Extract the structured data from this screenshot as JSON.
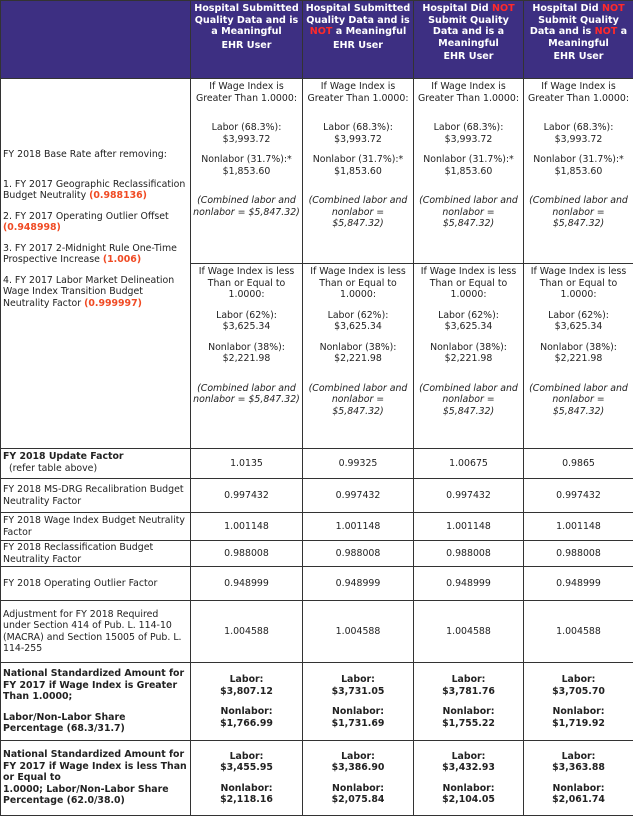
{
  "header": {
    "columns": [
      {
        "line1": "Hospital Submitted Quality Data and is a Meaningful",
        "not1": "",
        "line2": "",
        "not2": "",
        "line3": "",
        "ehr": "EHR User"
      },
      {
        "line1": "Hospital Submitted Quality Data and is ",
        "not1": "NOT",
        "line2": " a Meaningful",
        "not2": "",
        "line3": "",
        "ehr": "EHR User"
      },
      {
        "line1": "Hospital Did ",
        "not1": "NOT",
        "line2": " Submit Quality Data and is a Meaningful",
        "not2": "",
        "line3": "",
        "ehr": "EHR User"
      },
      {
        "line1": "Hospital Did ",
        "not1": "NOT",
        "line2": " Submit Quality Data and is ",
        "not2": "NOT",
        "line3": " a Meaningful",
        "ehr": "EHR User"
      }
    ]
  },
  "base_rate": {
    "label": "FY 2018 Base Rate after removing:",
    "items": [
      {
        "text": "1. FY 2017 Geographic Reclassification Budget Neutrality ",
        "value": "(0.988136)"
      },
      {
        "text": "2. FY 2017 Operating Outlier Offset ",
        "value": "(0.948998)"
      },
      {
        "text": "3. FY 2017 2-Midnight Rule One-Time Prospective Increase ",
        "value": "(1.006)"
      },
      {
        "text": "4. FY 2017 Labor Market Delineation Wage Index Transition Budget Neutrality Factor ",
        "value": "(0.999997)"
      }
    ],
    "greater": {
      "condition": "If Wage Index is Greater Than 1.0000:",
      "labor": "Labor (68.3%): $3,993.72",
      "nonlabor": "Nonlabor (31.7%):* $1,853.60",
      "combined": "(Combined labor and nonlabor = $5,847.32)"
    },
    "lesser": {
      "condition": "If Wage Index is less Than or Equal to 1.0000:",
      "labor": "Labor (62%): $3,625.34",
      "nonlabor": "Nonlabor (38%): $2,221.98",
      "combined": "(Combined labor and nonlabor = $5,847.32)"
    }
  },
  "rows": [
    {
      "label": "FY 2018 Update Factor",
      "sublabel": "(refer table above)",
      "values": [
        "1.0135",
        "0.99325",
        "1.00675",
        "0.9865"
      ]
    },
    {
      "label": "FY 2018 MS-DRG Recalibration Budget Neutrality Factor",
      "values": [
        "0.997432",
        "0.997432",
        "0.997432",
        "0.997432"
      ]
    },
    {
      "label": "FY 2018 Wage Index Budget Neutrality Factor",
      "values": [
        "1.001148",
        "1.001148",
        "1.001148",
        "1.001148"
      ]
    },
    {
      "label": "FY 2018  Reclassification Budget Neutrality Factor",
      "values": [
        "0.988008",
        "0.988008",
        "0.988008",
        "0.988008"
      ]
    },
    {
      "label": "FY 2018  Operating Outlier Factor",
      "values": [
        "0.948999",
        "0.948999",
        "0.948999",
        "0.948999"
      ]
    },
    {
      "label": "Adjustment for FY 2018 Required under Section 414 of Pub. L. 114-10 (MACRA) and Section 15005 of Pub. L. 114-255",
      "values": [
        "1.004588",
        "1.004588",
        "1.004588",
        "1.004588"
      ]
    }
  ],
  "national": [
    {
      "label1": "National Standardized Amount for FY 2017 if Wage Index is Greater Than 1.0000;",
      "label2": "Labor/Non-Labor Share Percentage  (68.3/31.7)",
      "labor_label": "Labor:",
      "nonlabor_label": "Nonlabor:",
      "labor": [
        "$3,807.12",
        "$3,731.05",
        "$3,781.76",
        "$3,705.70"
      ],
      "nonlabor": [
        "$1,766.99",
        "$1,731.69",
        "$1,755.22",
        "$1,719.92"
      ]
    },
    {
      "label1": "National Standardized Amount for FY 2017 if Wage Index is less Than or Equal to",
      "label2": "1.0000; Labor/Non-Labor Share Percentage (62.0/38.0)",
      "labor_label": "Labor:",
      "nonlabor_label": "Nonlabor:",
      "labor": [
        "$3,455.95",
        "$3,386.90",
        "$3,432.93",
        "$3,363.88"
      ],
      "nonlabor": [
        "$2,118.16",
        "$2,075.84",
        "$2,104.05",
        "$2,061.74"
      ]
    }
  ],
  "colors": {
    "header_bg": "#3d2f82",
    "highlight": "#ff2a2a",
    "factor": "#f04a23"
  }
}
